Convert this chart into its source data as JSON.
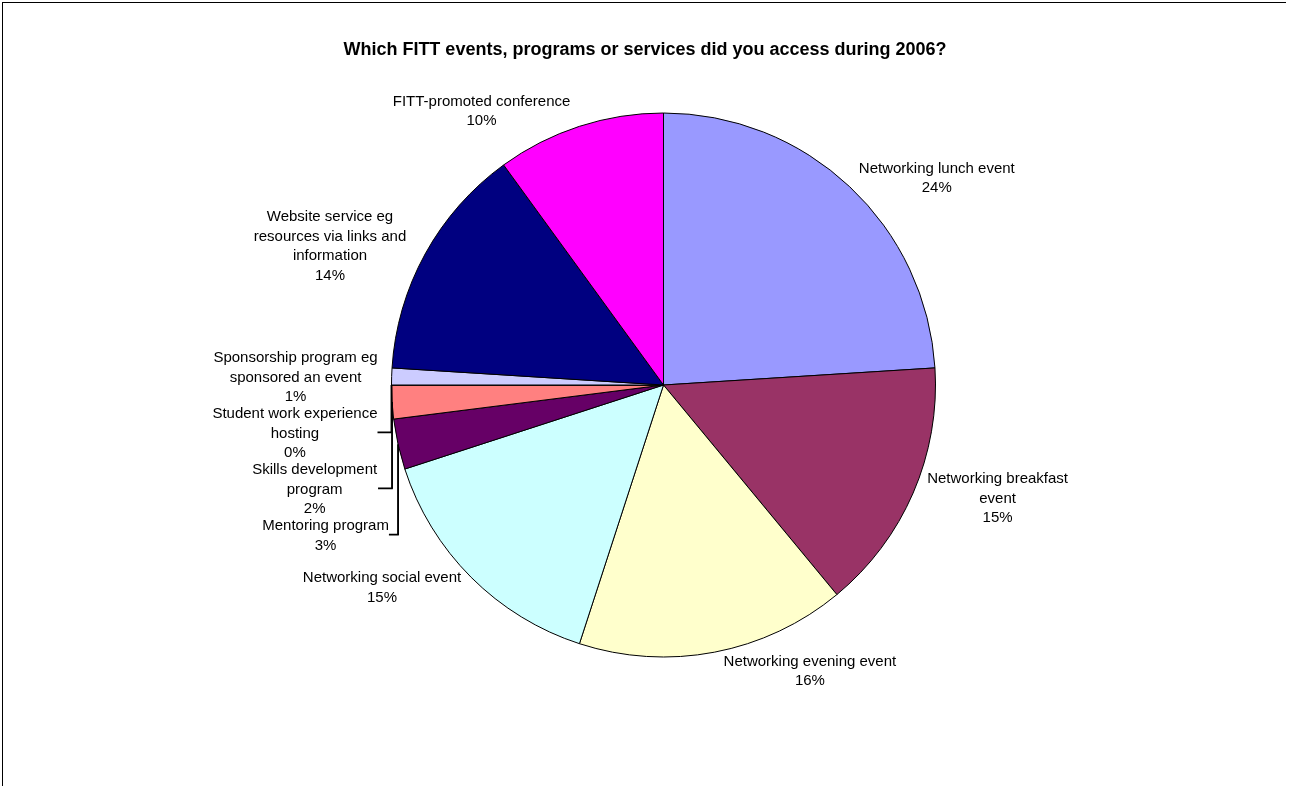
{
  "chart_data": {
    "type": "pie",
    "title": "Which FITT events, programs or services did you access during 2006?",
    "categories": [
      "Networking lunch event",
      "Networking breakfast event",
      "Networking evening event",
      "Networking social event",
      "Mentoring program",
      "Skills development program",
      "Student work experience hosting",
      "Sponsorship program eg sponsored an event",
      "Website service eg resources via links and information",
      "FITT-promoted conference"
    ],
    "values": [
      24,
      15,
      16,
      15,
      3,
      2,
      0,
      1,
      14,
      10
    ],
    "value_labels": [
      "24%",
      "15%",
      "16%",
      "15%",
      "3%",
      "2%",
      "0%",
      "1%",
      "14%",
      "10%"
    ],
    "colors": [
      "#9999ff",
      "#993366",
      "#ffffcc",
      "#ccffff",
      "#660066",
      "#ff8080",
      "#0066cc",
      "#ccccff",
      "#000080",
      "#ff00ff"
    ],
    "legend": false
  }
}
